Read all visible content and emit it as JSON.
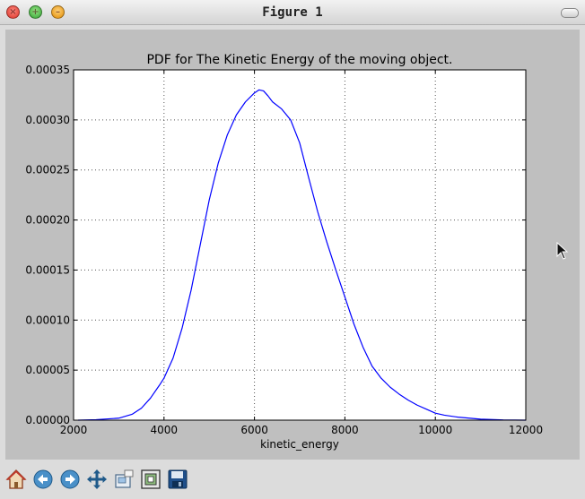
{
  "window": {
    "title": "Figure 1"
  },
  "toolbar": {
    "buttons": [
      {
        "name": "home-button",
        "icon": "home-icon"
      },
      {
        "name": "back-button",
        "icon": "back-arrow-icon"
      },
      {
        "name": "forward-button",
        "icon": "forward-arrow-icon"
      },
      {
        "name": "pan-button",
        "icon": "pan-arrows-icon"
      },
      {
        "name": "zoom-button",
        "icon": "zoom-rect-icon"
      },
      {
        "name": "subplots-button",
        "icon": "subplots-icon"
      },
      {
        "name": "save-button",
        "icon": "save-icon"
      }
    ]
  },
  "chart_data": {
    "type": "line",
    "title": "PDF for The Kinetic Energy of the moving object.",
    "xlabel": "kinetic_energy",
    "ylabel": "",
    "xlim": [
      2000,
      12000
    ],
    "ylim": [
      0,
      0.00035
    ],
    "xticks": [
      "2000",
      "4000",
      "6000",
      "8000",
      "10000",
      "12000"
    ],
    "yticks": [
      "0.00000",
      "0.00005",
      "0.00010",
      "0.00015",
      "0.00020",
      "0.00025",
      "0.00030",
      "0.00035"
    ],
    "grid": true,
    "series": [
      {
        "color": "#0000ff",
        "x": [
          2100,
          2500,
          3000,
          3300,
          3500,
          3700,
          3900,
          4000,
          4200,
          4400,
          4600,
          4800,
          5000,
          5200,
          5400,
          5600,
          5800,
          6000,
          6100,
          6200,
          6300,
          6400,
          6600,
          6800,
          7000,
          7200,
          7400,
          7600,
          7800,
          8000,
          8200,
          8400,
          8600,
          8800,
          9000,
          9200,
          9400,
          9600,
          9800,
          10000,
          10200,
          10500,
          11000,
          11500,
          12000
        ],
        "y": [
          0.0,
          5e-07,
          2e-06,
          6e-06,
          1.2e-05,
          2.2e-05,
          3.5e-05,
          4.2e-05,
          6.2e-05,
          9.2e-05,
          0.00013,
          0.000175,
          0.00022,
          0.000257,
          0.000285,
          0.000305,
          0.000318,
          0.000327,
          0.00033,
          0.000329,
          0.000324,
          0.000318,
          0.000311,
          0.0003,
          0.000277,
          0.000242,
          0.000208,
          0.000178,
          0.00015,
          0.000123,
          9.6e-05,
          7.3e-05,
          5.4e-05,
          4.2e-05,
          3.3e-05,
          2.6e-05,
          2e-05,
          1.5e-05,
          1.1e-05,
          7e-06,
          5e-06,
          3e-06,
          1e-06,
          2e-07,
          0.0
        ]
      }
    ]
  }
}
